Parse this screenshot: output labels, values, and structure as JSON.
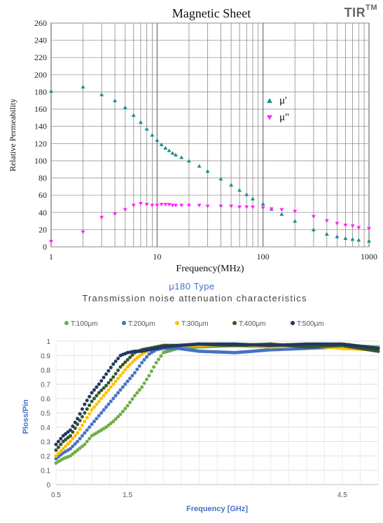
{
  "brand": {
    "name": "TIR",
    "mark": "TM"
  },
  "chart_data": [
    {
      "type": "scatter",
      "title": "Magnetic Sheet",
      "xlabel": "Frequency(MHz)",
      "ylabel": "Relative Permeability",
      "xscale": "log",
      "xlim": [
        1,
        1000
      ],
      "ylim": [
        0,
        260
      ],
      "xticks": [
        "1",
        "10",
        "100",
        "1000"
      ],
      "yticks": [
        "0",
        "20",
        "40",
        "60",
        "80",
        "100",
        "120",
        "140",
        "160",
        "180",
        "200",
        "220",
        "240",
        "260"
      ],
      "grid": true,
      "legend_position": "right",
      "series": [
        {
          "name": "μ'",
          "color": "#1a8c8c",
          "marker": "triangle",
          "x": [
            1,
            2,
            3,
            4,
            5,
            6,
            7,
            8,
            9,
            10,
            11,
            12,
            13,
            14,
            15,
            17,
            20,
            25,
            30,
            40,
            50,
            60,
            70,
            80,
            100,
            120,
            150,
            200,
            300,
            400,
            500,
            600,
            700,
            800,
            1000
          ],
          "y": [
            181,
            186,
            177,
            170,
            162,
            153,
            145,
            137,
            130,
            124,
            119,
            115,
            112,
            109,
            107,
            104,
            100,
            94,
            88,
            79,
            72,
            66,
            61,
            56,
            50,
            44,
            38,
            30,
            20,
            15,
            12,
            10,
            9,
            8,
            7
          ]
        },
        {
          "name": "μ\"",
          "color": "#ff22ff",
          "marker": "triangle-down",
          "x": [
            1,
            2,
            3,
            4,
            5,
            6,
            7,
            8,
            9,
            10,
            11,
            12,
            13,
            14,
            15,
            17,
            20,
            25,
            30,
            40,
            50,
            60,
            70,
            80,
            100,
            120,
            150,
            200,
            300,
            400,
            500,
            600,
            700,
            800,
            1000
          ],
          "y": [
            6,
            17,
            34,
            38,
            43,
            48,
            50,
            49,
            48,
            48,
            49,
            49,
            49,
            48,
            48,
            48,
            48,
            48,
            47,
            47,
            47,
            46,
            46,
            46,
            45,
            44,
            43,
            41,
            35,
            30,
            27,
            25,
            24,
            22,
            21
          ]
        }
      ]
    },
    {
      "type": "scatter",
      "title": "μ180 Type",
      "subtitle": "Transmission noise attenuation characteristics",
      "xlabel": "Frequency [GHz]",
      "ylabel": "Ploss/Pin",
      "xlim": [
        0.5,
        5.0
      ],
      "ylim": [
        0,
        1
      ],
      "xticks": [
        "0.5",
        "1.5",
        "4.5"
      ],
      "yticks": [
        "0",
        "0.1",
        "0.2",
        "0.3",
        "0.4",
        "0.5",
        "0.6",
        "0.7",
        "0.8",
        "0.9",
        "1"
      ],
      "grid": true,
      "legend_position": "top",
      "series": [
        {
          "name": "T:100μm",
          "color": "#70ad47",
          "x": [
            0.5,
            0.6,
            0.7,
            0.8,
            0.9,
            1.0,
            1.1,
            1.2,
            1.3,
            1.4,
            1.5,
            1.6,
            1.7,
            1.8,
            1.9,
            2.0,
            2.2,
            2.5,
            3.0,
            3.5,
            4.0,
            4.5,
            5.0
          ],
          "y": [
            0.15,
            0.18,
            0.2,
            0.24,
            0.28,
            0.34,
            0.37,
            0.4,
            0.44,
            0.49,
            0.55,
            0.62,
            0.68,
            0.76,
            0.85,
            0.92,
            0.95,
            0.96,
            0.97,
            0.96,
            0.97,
            0.97,
            0.96
          ]
        },
        {
          "name": "T:200μm",
          "color": "#4472c4",
          "x": [
            0.5,
            0.6,
            0.7,
            0.8,
            0.9,
            1.0,
            1.1,
            1.2,
            1.3,
            1.4,
            1.5,
            1.6,
            1.7,
            1.8,
            1.9,
            2.0,
            2.2,
            2.5,
            3.0,
            3.5,
            4.0,
            4.5,
            5.0
          ],
          "y": [
            0.18,
            0.22,
            0.25,
            0.3,
            0.36,
            0.42,
            0.48,
            0.54,
            0.6,
            0.66,
            0.72,
            0.78,
            0.85,
            0.91,
            0.94,
            0.95,
            0.95,
            0.93,
            0.92,
            0.94,
            0.95,
            0.96,
            0.95
          ]
        },
        {
          "name": "T:300μm",
          "color": "#ffc000",
          "x": [
            0.5,
            0.6,
            0.7,
            0.8,
            0.9,
            1.0,
            1.1,
            1.2,
            1.3,
            1.4,
            1.5,
            1.6,
            1.7,
            1.8,
            1.9,
            2.0,
            2.2,
            2.5,
            3.0,
            3.5,
            4.0,
            4.5,
            5.0
          ],
          "y": [
            0.2,
            0.25,
            0.3,
            0.36,
            0.44,
            0.52,
            0.58,
            0.64,
            0.7,
            0.76,
            0.82,
            0.87,
            0.91,
            0.94,
            0.96,
            0.97,
            0.97,
            0.97,
            0.98,
            0.96,
            0.97,
            0.95,
            0.94
          ]
        },
        {
          "name": "T:400μm",
          "color": "#375623",
          "x": [
            0.5,
            0.6,
            0.7,
            0.8,
            0.9,
            1.0,
            1.1,
            1.2,
            1.3,
            1.4,
            1.5,
            1.6,
            1.7,
            1.8,
            1.9,
            2.0,
            2.2,
            2.5,
            3.0,
            3.5,
            4.0,
            4.5,
            5.0
          ],
          "y": [
            0.24,
            0.3,
            0.34,
            0.42,
            0.5,
            0.58,
            0.64,
            0.69,
            0.75,
            0.82,
            0.87,
            0.92,
            0.94,
            0.95,
            0.96,
            0.97,
            0.97,
            0.98,
            0.97,
            0.98,
            0.96,
            0.97,
            0.93
          ]
        },
        {
          "name": "T:500μm",
          "color": "#203864",
          "x": [
            0.5,
            0.6,
            0.7,
            0.8,
            0.9,
            1.0,
            1.1,
            1.2,
            1.3,
            1.4,
            1.5,
            1.6,
            1.7,
            1.8,
            1.9,
            2.0,
            2.2,
            2.5,
            3.0,
            3.5,
            4.0,
            4.5,
            5.0
          ],
          "y": [
            0.28,
            0.34,
            0.38,
            0.46,
            0.56,
            0.64,
            0.7,
            0.77,
            0.84,
            0.9,
            0.92,
            0.93,
            0.93,
            0.94,
            0.95,
            0.96,
            0.97,
            0.98,
            0.98,
            0.97,
            0.98,
            0.98,
            0.95
          ]
        }
      ]
    }
  ]
}
